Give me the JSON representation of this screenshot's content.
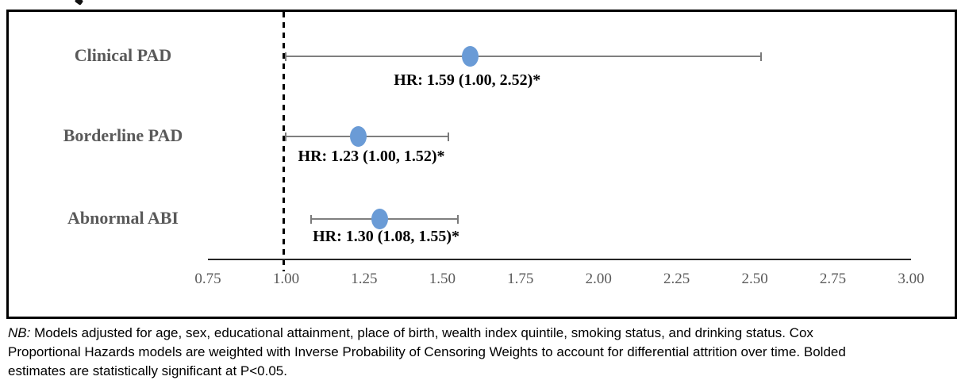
{
  "chart_data": {
    "type": "scatter",
    "subtype": "forest-plot",
    "orientation": "horizontal",
    "title": "",
    "xlabel": "",
    "ylabel": "",
    "xlim": [
      0.75,
      3.0
    ],
    "x_ticks": [
      "0.75",
      "1.00",
      "1.25",
      "1.50",
      "1.75",
      "2.00",
      "2.25",
      "2.50",
      "2.75",
      "3.00"
    ],
    "reference_line_x": 1.0,
    "grid": false,
    "legend": false,
    "marker_color": "#6a9bd6",
    "errorbar_color": "#7f7f7f",
    "axis_color": "#262626",
    "category_label_color": "#595959",
    "series": [
      {
        "label": "Clinical PAD",
        "hr": 1.59,
        "ci_low": 1.0,
        "ci_high": 2.52,
        "annotation": "HR: 1.59 (1.00, 2.52)*"
      },
      {
        "label": "Borderline PAD",
        "hr": 1.23,
        "ci_low": 1.0,
        "ci_high": 1.52,
        "annotation": "HR: 1.23 (1.00, 1.52)*"
      },
      {
        "label": "Abnormal ABI",
        "hr": 1.3,
        "ci_low": 1.08,
        "ci_high": 1.55,
        "annotation": "HR: 1.30 (1.08, 1.55)*"
      }
    ]
  },
  "note": {
    "prefix": "NB:",
    "line1_rest": " Models adjusted for age, sex, educational attainment, place of birth, wealth index quintile, smoking status, and drinking status. Cox",
    "line2": "Proportional Hazards models are weighted with Inverse Probability of Censoring Weights to account for differential attrition over time. Bolded",
    "line3": "estimates are statistically significant at P<0.05."
  }
}
